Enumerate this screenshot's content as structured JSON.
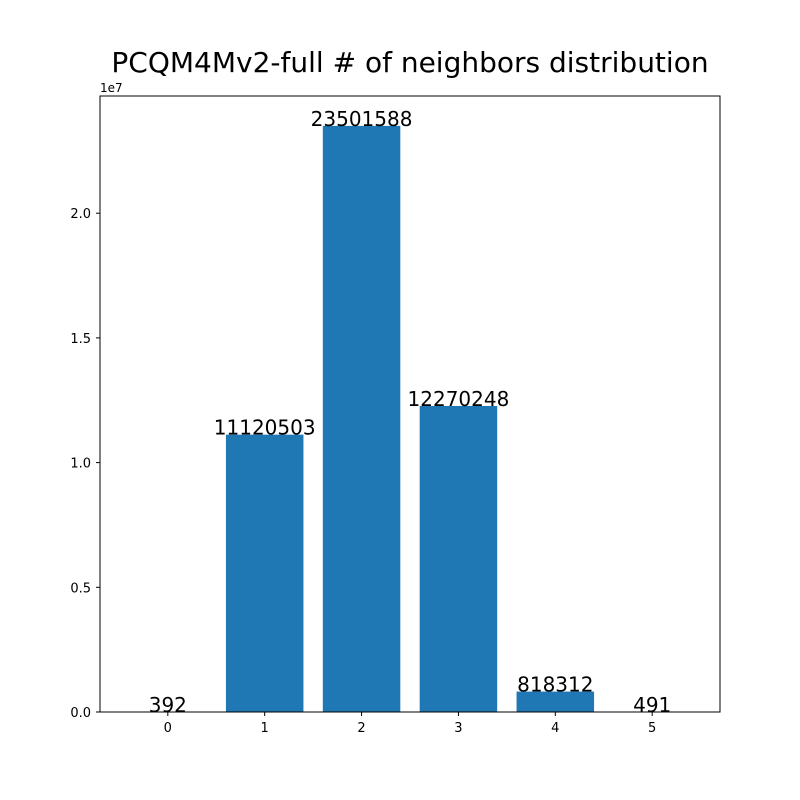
{
  "chart_data": {
    "type": "bar",
    "title": "PCQM4Mv2-full # of neighbors distribution",
    "xlabel": "",
    "ylabel": "",
    "categories": [
      "0",
      "1",
      "2",
      "3",
      "4",
      "5"
    ],
    "values": [
      392,
      11120503,
      23501588,
      12270248,
      818312,
      491
    ],
    "data_labels": [
      "392",
      "11120503",
      "23501588",
      "12270248",
      "818312",
      "491"
    ],
    "ylim": [
      0,
      24700000
    ],
    "y_ticks": [
      0,
      5000000,
      10000000,
      15000000,
      20000000
    ],
    "y_tick_labels": [
      "0.0",
      "0.5",
      "1.0",
      "1.5",
      "2.0"
    ],
    "y_offset_label": "1e7",
    "bar_color": "#1f77b4",
    "grid": false,
    "legend": "none"
  }
}
